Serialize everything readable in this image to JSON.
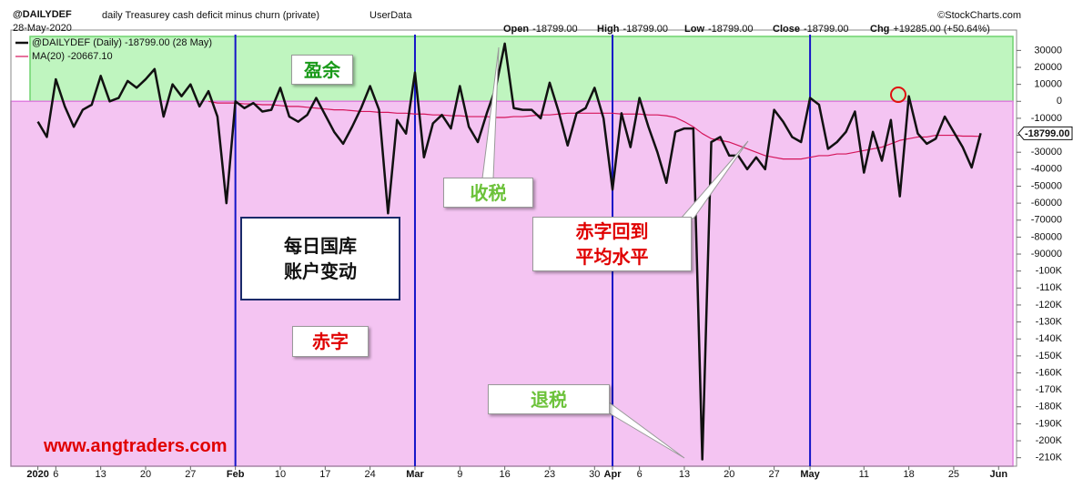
{
  "chart_data": {
    "type": "line",
    "title": "@DAILYDEF",
    "subtitle": "daily Treasurey cash deficit minus churn (private)",
    "source": "UserData",
    "date": "28-May-2020",
    "credit": "©StockCharts.com",
    "quote": [
      {
        "label": "Open",
        "value": "-18799.00"
      },
      {
        "label": "High",
        "value": "-18799.00"
      },
      {
        "label": "Low",
        "value": "-18799.00"
      },
      {
        "label": "Close",
        "value": "-18799.00"
      },
      {
        "label": "Chg",
        "value": "+19285.00 (+50.64%)"
      }
    ],
    "last_label": "-18799.00",
    "x": [
      "2020-01-02",
      "2020-01-03",
      "2020-01-06",
      "2020-01-07",
      "2020-01-08",
      "2020-01-09",
      "2020-01-10",
      "2020-01-13",
      "2020-01-14",
      "2020-01-15",
      "2020-01-16",
      "2020-01-17",
      "2020-01-20",
      "2020-01-21",
      "2020-01-22",
      "2020-01-23",
      "2020-01-24",
      "2020-01-27",
      "2020-01-28",
      "2020-01-29",
      "2020-01-30",
      "2020-01-31",
      "2020-02-03",
      "2020-02-04",
      "2020-02-05",
      "2020-02-06",
      "2020-02-07",
      "2020-02-10",
      "2020-02-11",
      "2020-02-12",
      "2020-02-13",
      "2020-02-14",
      "2020-02-17",
      "2020-02-18",
      "2020-02-19",
      "2020-02-20",
      "2020-02-21",
      "2020-02-24",
      "2020-02-25",
      "2020-02-26",
      "2020-02-27",
      "2020-02-28",
      "2020-03-02",
      "2020-03-03",
      "2020-03-04",
      "2020-03-05",
      "2020-03-06",
      "2020-03-09",
      "2020-03-10",
      "2020-03-11",
      "2020-03-12",
      "2020-03-13",
      "2020-03-16",
      "2020-03-17",
      "2020-03-18",
      "2020-03-19",
      "2020-03-20",
      "2020-03-23",
      "2020-03-24",
      "2020-03-25",
      "2020-03-26",
      "2020-03-27",
      "2020-03-30",
      "2020-03-31",
      "2020-04-01",
      "2020-04-02",
      "2020-04-03",
      "2020-04-06",
      "2020-04-07",
      "2020-04-08",
      "2020-04-09",
      "2020-04-10",
      "2020-04-13",
      "2020-04-14",
      "2020-04-15",
      "2020-04-16",
      "2020-04-17",
      "2020-04-20",
      "2020-04-21",
      "2020-04-22",
      "2020-04-23",
      "2020-04-24",
      "2020-04-27",
      "2020-04-28",
      "2020-04-29",
      "2020-04-30",
      "2020-05-01",
      "2020-05-04",
      "2020-05-05",
      "2020-05-06",
      "2020-05-07",
      "2020-05-08",
      "2020-05-11",
      "2020-05-12",
      "2020-05-13",
      "2020-05-14",
      "2020-05-15",
      "2020-05-18",
      "2020-05-19",
      "2020-05-20",
      "2020-05-21",
      "2020-05-22",
      "2020-05-25",
      "2020-05-26",
      "2020-05-27",
      "2020-05-28"
    ],
    "series": [
      {
        "name": "@DAILYDEF (Daily) -18799.00 (28 May)",
        "color": "#111111",
        "values": [
          -12000,
          -21000,
          13000,
          -3000,
          -15000,
          -5000,
          -2000,
          15000,
          0,
          2000,
          12000,
          8000,
          13000,
          19000,
          -9000,
          10000,
          3000,
          10000,
          -3000,
          6000,
          -9000,
          -60000,
          0,
          -4000,
          -1000,
          -6000,
          -5000,
          8000,
          -9000,
          -12000,
          -8000,
          2000,
          -8000,
          -18000,
          -25000,
          -15000,
          -4000,
          9000,
          -5000,
          -66000,
          -11000,
          -19000,
          17000,
          -33000,
          -13000,
          -8000,
          -16000,
          9000,
          -15000,
          -24000,
          -7000,
          8000,
          34000,
          -4000,
          -5000,
          -5000,
          -10000,
          11000,
          -6000,
          -26000,
          -7000,
          -4000,
          8000,
          -10000,
          -52000,
          -7000,
          -27000,
          2000,
          -15000,
          -30000,
          -48000,
          -18000,
          -16000,
          -16000,
          -211000,
          -24000,
          -21000,
          -32000,
          -32000,
          -40000,
          -33000,
          -40000,
          -5000,
          -12000,
          -21000,
          -24000,
          2000,
          -2000,
          -28000,
          -24000,
          -18000,
          -6000,
          -42000,
          -18000,
          -35000,
          -11000,
          -56000,
          3000,
          -19000,
          -25000,
          -22000,
          -9000,
          -18000,
          -27000,
          -39000,
          -18799
        ]
      },
      {
        "name": "MA(20) -20667.10",
        "color": "#d4145a",
        "values": [
          null,
          null,
          null,
          null,
          null,
          null,
          null,
          null,
          null,
          null,
          null,
          null,
          null,
          null,
          null,
          null,
          null,
          null,
          null,
          0,
          -1000,
          -1000,
          -1000,
          -1500,
          -1500,
          -2000,
          -2000,
          -2500,
          -3000,
          -3000,
          -3500,
          -4000,
          -4500,
          -5000,
          -5000,
          -5500,
          -6000,
          -6000,
          -6500,
          -6500,
          -7000,
          -7000,
          -7500,
          -7500,
          -8000,
          -8000,
          -8500,
          -8500,
          -9000,
          -9000,
          -9000,
          -9500,
          -9500,
          -9000,
          -9000,
          -8500,
          -8000,
          -8000,
          -7500,
          -7000,
          -7000,
          -7000,
          -7000,
          -7000,
          -7000,
          -7500,
          -7500,
          -7500,
          -8000,
          -8000,
          -8500,
          -9500,
          -12000,
          -15000,
          -19000,
          -22000,
          -23000,
          -24000,
          -26000,
          -28000,
          -30000,
          -32000,
          -33000,
          -34000,
          -34000,
          -34000,
          -33000,
          -32000,
          -32000,
          -31000,
          -31000,
          -30000,
          -29000,
          -28000,
          -27000,
          -25000,
          -23000,
          -22000,
          -21000,
          -21000,
          -20000,
          -20000,
          -20000,
          -20500,
          -20500,
          -20667.1
        ]
      }
    ],
    "xlim": [
      "2019-12-30",
      "2020-06-03"
    ],
    "xticks": [
      {
        "value": "2020-01-02",
        "label": "2020"
      },
      {
        "value": "2020-01-06",
        "label": "6"
      },
      {
        "value": "2020-01-13",
        "label": "13"
      },
      {
        "value": "2020-01-20",
        "label": "20"
      },
      {
        "value": "2020-01-27",
        "label": "27"
      },
      {
        "value": "2020-02-03",
        "label": "Feb"
      },
      {
        "value": "2020-02-10",
        "label": "10"
      },
      {
        "value": "2020-02-17",
        "label": "17"
      },
      {
        "value": "2020-02-24",
        "label": "24"
      },
      {
        "value": "2020-03-02",
        "label": "Mar"
      },
      {
        "value": "2020-03-09",
        "label": "9"
      },
      {
        "value": "2020-03-16",
        "label": "16"
      },
      {
        "value": "2020-03-23",
        "label": "23"
      },
      {
        "value": "2020-03-30",
        "label": "30"
      },
      {
        "value": "2020-04-01",
        "label": "Apr"
      },
      {
        "value": "2020-04-06",
        "label": "6"
      },
      {
        "value": "2020-04-13",
        "label": "13"
      },
      {
        "value": "2020-04-20",
        "label": "20"
      },
      {
        "value": "2020-04-27",
        "label": "27"
      },
      {
        "value": "2020-05-01",
        "label": "May"
      },
      {
        "value": "2020-05-11",
        "label": "11"
      },
      {
        "value": "2020-05-18",
        "label": "18"
      },
      {
        "value": "2020-05-25",
        "label": "25"
      },
      {
        "value": "2020-06-01",
        "label": "Jun"
      }
    ],
    "ylim": [
      -215000,
      42000
    ],
    "yticks": [
      30000,
      20000,
      10000,
      0,
      -10000,
      -20000,
      -30000,
      -40000,
      -50000,
      -60000,
      -70000,
      -80000,
      -90000,
      {
        "value": -100000,
        "label": "-100K"
      },
      {
        "value": -110000,
        "label": "-110K"
      },
      {
        "value": -120000,
        "label": "-120K"
      },
      {
        "value": -130000,
        "label": "-130K"
      },
      {
        "value": -140000,
        "label": "-140K"
      },
      {
        "value": -150000,
        "label": "-150K"
      },
      {
        "value": -160000,
        "label": "-160K"
      },
      {
        "value": -170000,
        "label": "-170K"
      },
      {
        "value": -180000,
        "label": "-180K"
      },
      {
        "value": -190000,
        "label": "-190K"
      },
      {
        "value": -200000,
        "label": "-200K"
      },
      {
        "value": -210000,
        "label": "-210K"
      }
    ],
    "annotations": [
      {
        "lines": [
          "盈余"
        ]
      },
      {
        "lines": [
          "收税"
        ]
      },
      {
        "lines": [
          "赤字回到",
          "平均水平"
        ]
      },
      {
        "lines": [
          "每日国库",
          "账户变动"
        ]
      },
      {
        "lines": [
          "赤字"
        ]
      },
      {
        "lines": [
          "退税"
        ]
      },
      {
        "lines": [
          "www.angtraders.com"
        ]
      }
    ]
  }
}
